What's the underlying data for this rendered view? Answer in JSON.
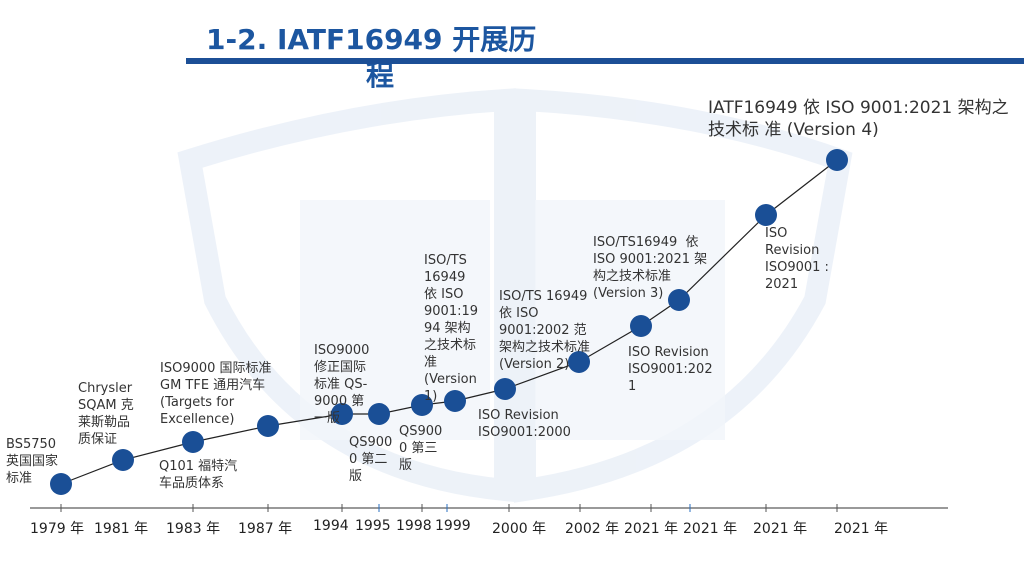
{
  "slide": {
    "title_line1": "1-2. IATF16949 开展历",
    "title_line2": "程"
  },
  "colors": {
    "accent": "#1c56a0",
    "node": "#1a4f96",
    "rule": "#1c4f96"
  },
  "chart_data": {
    "type": "timeline",
    "x_labels": [
      "1979 年",
      "1981 年",
      "1983 年",
      "1987 年",
      "1994",
      "1995",
      "1998",
      "1999",
      "2000 年",
      "2002 年",
      "2021 年",
      "2021 年",
      "2021 年",
      "2021 年"
    ],
    "events": [
      {
        "text": "BS5750\n英国国家\n标准"
      },
      {
        "text": "Chrysler\nSQAM 克\n莱斯勒品\n质保证"
      },
      {
        "text": "Q101 福特汽\n车品质体系"
      },
      {
        "text": "ISO9000 国际标准\nGM TFE 通用汽车\n(Targets for\nExcellence)"
      },
      {
        "text": "ISO9000\n修正国际\n标准 QS-\n9000 第\n一版"
      },
      {
        "text": "QS900\n0 第二\n版"
      },
      {
        "text": "QS900\n0 第三\n版"
      },
      {
        "text": "ISO/TS\n16949\n依 ISO\n9001:19\n94 架构\n之技术标\n准\n(Version\n1)"
      },
      {
        "text": "ISO Revision\nISO9001:2000"
      },
      {
        "text": "ISO/TS 16949\n依 ISO\n9001:2002 范\n架构之技术标准\n(Version 2)"
      },
      {
        "text": "ISO Revision\nISO9001:202\n1"
      },
      {
        "text": "ISO/TS16949  依\nISO 9001:2021 架\n构之技术标准\n(Version 3)"
      },
      {
        "text": "ISO\nRevision\nISO9001 :\n2021"
      },
      {
        "text": "IATF16949  依 ISO\n9001:2021 架构之技术标\n准  (Version 4)"
      }
    ]
  }
}
